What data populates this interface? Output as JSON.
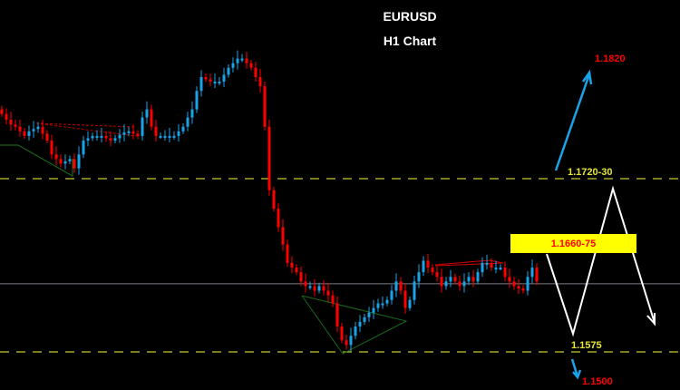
{
  "chart_data": {
    "type": "candlestick",
    "title": "EURUSD",
    "subtitle": "H1 Chart",
    "symbol": "EURUSD",
    "timeframe": "H1",
    "ylim": [
      1.1493,
      1.1838
    ],
    "grid": false,
    "background": "#000000",
    "colors": {
      "up": "#1aa3e8",
      "down": "#ff0000",
      "level": "#c8c832",
      "current_price_line": "#7a7f88",
      "zone": "#ffff00"
    },
    "closes": [
      1.1781,
      1.1776,
      1.1772,
      1.177,
      1.1766,
      1.1762,
      1.1766,
      1.1768,
      1.177,
      1.1764,
      1.1758,
      1.1746,
      1.1742,
      1.1738,
      1.174,
      1.1742,
      1.1734,
      1.1746,
      1.1758,
      1.176,
      1.1762,
      1.1762,
      1.1762,
      1.176,
      1.1758,
      1.176,
      1.1763,
      1.1765,
      1.1766,
      1.1764,
      1.1762,
      1.1778,
      1.1785,
      1.177,
      1.1762,
      1.1762,
      1.1762,
      1.1762,
      1.1762,
      1.1766,
      1.177,
      1.1778,
      1.1785,
      1.1801,
      1.1813,
      1.1811,
      1.1809,
      1.1809,
      1.1809,
      1.1815,
      1.1821,
      1.1825,
      1.1829,
      1.1829,
      1.1825,
      1.1821,
      1.1813,
      1.1805,
      1.177,
      1.1715,
      1.1699,
      1.1683,
      1.1668,
      1.1652,
      1.1648,
      1.1644,
      1.1636,
      1.1632,
      1.1632,
      1.1628,
      1.1632,
      1.1628,
      1.1624,
      1.1617,
      1.1597,
      1.1585,
      1.1581,
      1.1589,
      1.1597,
      1.1601,
      1.1605,
      1.1609,
      1.1613,
      1.1617,
      1.1617,
      1.162,
      1.1628,
      1.1636,
      1.1628,
      1.1613,
      1.162,
      1.1636,
      1.1644,
      1.1654,
      1.1648,
      1.1644,
      1.164,
      1.1632,
      1.1636,
      1.164,
      1.1636,
      1.1632,
      1.1636,
      1.164,
      1.1636,
      1.1644,
      1.1652,
      1.1652,
      1.1648,
      1.1648,
      1.1648,
      1.164,
      1.1636,
      1.1632,
      1.163,
      1.1628,
      1.164,
      1.1648,
      1.1636
    ],
    "current_price": 1.1634,
    "levels": [
      {
        "price": 1.1725,
        "label": "1.1720-30",
        "style": "dashed"
      },
      {
        "price": 1.1575,
        "label": "1.1575",
        "style": "dashed"
      }
    ],
    "zone": {
      "from": 1.166,
      "to": 1.1675,
      "label": "1.1660-75"
    },
    "targets": [
      {
        "price": 1.182,
        "label": "1.1820",
        "direction": "up"
      },
      {
        "price": 1.15,
        "label": "1.1500",
        "direction": "down"
      }
    ]
  }
}
